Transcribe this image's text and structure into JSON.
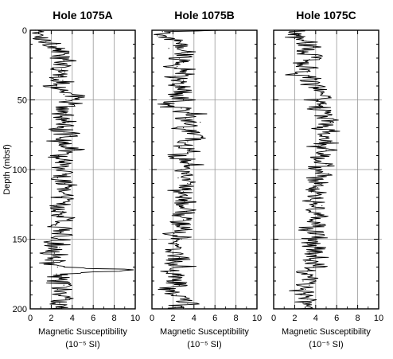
{
  "chart_data": [
    {
      "type": "line",
      "title": "Hole 1075A",
      "xlabel": "Magnetic Susceptibility",
      "xlabel_unit": "(10⁻⁵ SI)",
      "ylabel": "Depth  (mbsf)",
      "xlim": [
        0,
        10
      ],
      "ylim": [
        200,
        0
      ],
      "x_ticks": [
        "0",
        "2",
        "4",
        "6",
        "8",
        "10"
      ],
      "y_ticks": [
        "0",
        "50",
        "100",
        "150",
        "200"
      ],
      "grid": true,
      "series": [
        {
          "depth": [
            0,
            2,
            5,
            8,
            10,
            12,
            15,
            18,
            20,
            22,
            25,
            28,
            30,
            33,
            36,
            40,
            43,
            46,
            48,
            50,
            53,
            56,
            60,
            63,
            66,
            70,
            73,
            76,
            80,
            83,
            86,
            90,
            93,
            96,
            100,
            103,
            106,
            110,
            113,
            116,
            120,
            123,
            126,
            130,
            133,
            136,
            140,
            143,
            146,
            150,
            153,
            156,
            160,
            163,
            166,
            170,
            172,
            175,
            178,
            180,
            183,
            186,
            190,
            193,
            196,
            199
          ],
          "values": [
            0.5,
            0.8,
            0.6,
            1.5,
            2.5,
            2.2,
            3.0,
            2.8,
            2.6,
            3.2,
            3.5,
            3.0,
            3.3,
            2.7,
            3.1,
            2.5,
            2.9,
            3.2,
            4.6,
            3.4,
            3.8,
            2.8,
            3.4,
            3.0,
            3.6,
            2.6,
            3.2,
            3.8,
            2.8,
            3.4,
            4.2,
            2.7,
            3.3,
            3.5,
            2.9,
            3.4,
            2.6,
            3.3,
            3.7,
            2.8,
            3.0,
            3.6,
            2.5,
            3.1,
            2.7,
            3.5,
            2.4,
            3.2,
            2.6,
            2.9,
            2.2,
            2.8,
            2.3,
            2.7,
            2.2,
            2.6,
            9.8,
            2.5,
            3.0,
            2.4,
            3.2,
            2.6,
            2.9,
            3.4,
            2.8,
            2.5
          ]
        }
      ]
    },
    {
      "type": "line",
      "title": "Hole 1075B",
      "xlabel": "Magnetic Susceptibility",
      "xlabel_unit": "(10⁻⁵ SI)",
      "xlim": [
        0,
        10
      ],
      "ylim": [
        200,
        0
      ],
      "x_ticks": [
        "0",
        "2",
        "4",
        "6",
        "8",
        "10"
      ],
      "grid": true,
      "series": [
        {
          "depth": [
            0,
            1,
            4,
            7,
            10,
            13,
            16,
            20,
            23,
            26,
            30,
            33,
            36,
            40,
            43,
            46,
            50,
            53,
            56,
            60,
            63,
            66,
            70,
            73,
            76,
            80,
            83,
            86,
            90,
            93,
            96,
            100,
            103,
            106,
            110,
            113,
            116,
            120,
            123,
            126,
            130,
            133,
            136,
            140,
            143,
            146,
            150,
            153,
            156,
            160,
            163,
            166,
            170,
            173,
            176,
            180,
            183,
            186,
            190,
            193,
            196,
            199
          ],
          "values": [
            6.2,
            1.0,
            0.5,
            2.2,
            2.8,
            1.6,
            3.4,
            2.6,
            3.0,
            2.4,
            3.2,
            2.2,
            3.0,
            2.6,
            3.3,
            2.4,
            3.0,
            1.2,
            2.8,
            3.8,
            3.2,
            4.6,
            3.0,
            3.8,
            4.8,
            3.4,
            2.8,
            3.6,
            2.6,
            3.2,
            3.8,
            2.8,
            3.3,
            2.5,
            3.4,
            2.7,
            3.0,
            2.4,
            3.1,
            2.6,
            3.3,
            2.2,
            3.0,
            2.6,
            3.2,
            2.1,
            2.8,
            2.3,
            2.7,
            2.0,
            2.6,
            2.2,
            2.9,
            1.8,
            2.5,
            2.0,
            2.6,
            1.7,
            2.3,
            2.8,
            3.4,
            2.2
          ]
        }
      ]
    },
    {
      "type": "line",
      "title": "Hole 1075C",
      "xlabel": "Magnetic Susceptibility",
      "xlabel_unit": "(10⁻⁵ SI)",
      "xlim": [
        0,
        10
      ],
      "ylim": [
        200,
        0
      ],
      "x_ticks": [
        "0",
        "2",
        "4",
        "6",
        "8",
        "10"
      ],
      "grid": true,
      "series": [
        {
          "depth": [
            0,
            3,
            6,
            9,
            12,
            15,
            18,
            21,
            24,
            27,
            30,
            32,
            34,
            45,
            48,
            50,
            53,
            56,
            60,
            63,
            66,
            70,
            73,
            76,
            80,
            83,
            86,
            90,
            93,
            96,
            100,
            103,
            106,
            110,
            113,
            116,
            120,
            123,
            126,
            130,
            133,
            136,
            140,
            143,
            146,
            150,
            153,
            156,
            160,
            163,
            166,
            170,
            173,
            176,
            180,
            183,
            186,
            190,
            193,
            196,
            199
          ],
          "values": [
            1.5,
            2.4,
            2.0,
            3.0,
            3.8,
            2.8,
            4.0,
            3.4,
            2.6,
            3.8,
            3.2,
            2.0,
            3.5,
            4.6,
            5.2,
            4.2,
            5.0,
            4.4,
            5.2,
            4.6,
            5.4,
            4.2,
            5.0,
            4.6,
            5.4,
            4.3,
            5.0,
            4.6,
            4.0,
            5.0,
            4.4,
            5.2,
            3.8,
            4.6,
            4.2,
            3.6,
            4.4,
            3.8,
            4.6,
            3.4,
            4.2,
            3.6,
            4.4,
            3.2,
            4.0,
            3.8,
            3.2,
            4.2,
            3.4,
            4.6,
            3.0,
            3.8,
            3.2,
            3.6,
            2.8,
            3.4,
            3.0,
            2.6,
            3.2,
            2.8,
            3.0
          ]
        }
      ]
    }
  ]
}
